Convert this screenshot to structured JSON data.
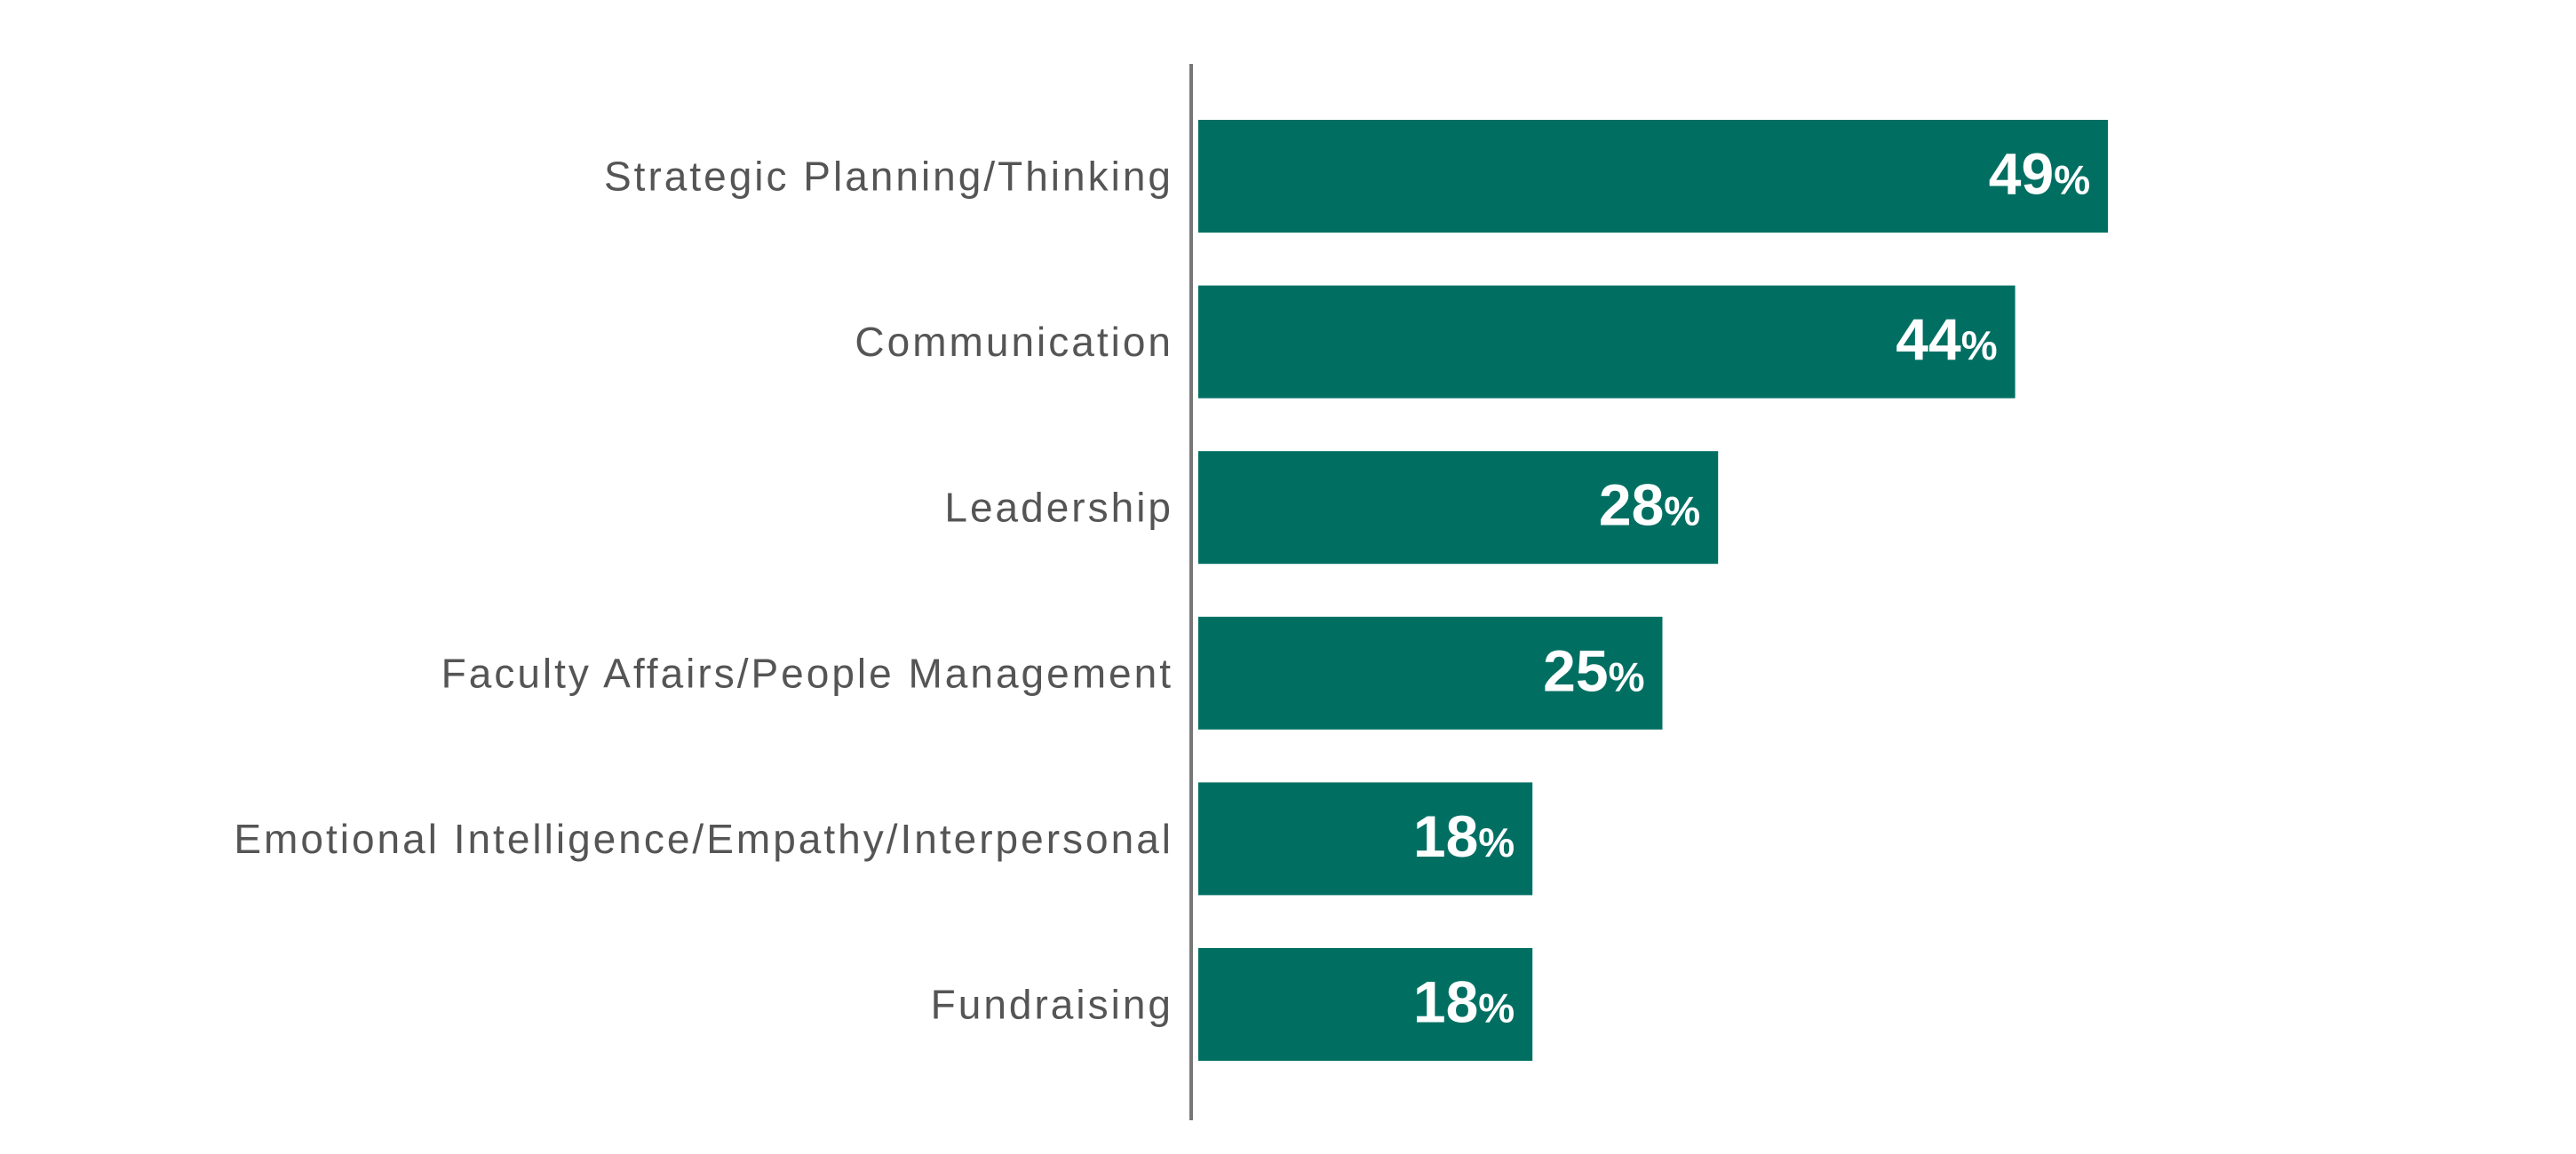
{
  "chart_data": {
    "type": "bar",
    "orientation": "horizontal",
    "title": "",
    "xlabel": "",
    "ylabel": "",
    "categories": [
      "Strategic Planning/Thinking",
      "Communication",
      "Leadership",
      "Faculty Affairs/People Management",
      "Emotional Intelligence/Empathy/Interpersonal",
      "Fundraising"
    ],
    "values": [
      49,
      44,
      28,
      25,
      18,
      18
    ],
    "value_suffix": "%",
    "xlim": [
      0,
      100
    ],
    "grid": false,
    "legend": "none",
    "data_labels": "inside-end",
    "colors": {
      "bar": "#006f62",
      "bar_label": "#ffffff",
      "category_label": "#555555",
      "axis": "#777777"
    }
  }
}
